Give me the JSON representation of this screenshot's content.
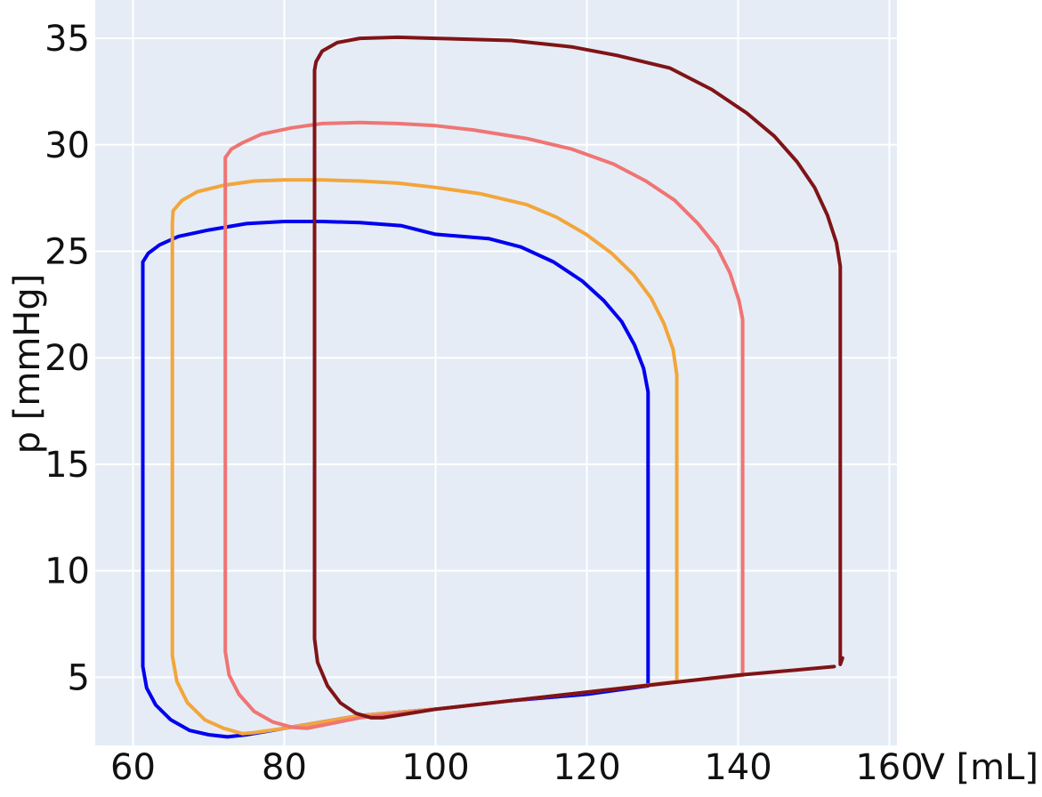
{
  "chart_data": {
    "type": "line",
    "title": "",
    "xlabel": "V [mL]",
    "ylabel": "p [mmHg]",
    "xlim": [
      55,
      161
    ],
    "ylim": [
      1.8,
      36.8
    ],
    "grid": true,
    "background_color": "#e5ecf6",
    "x_ticks": [
      60,
      80,
      100,
      120,
      140,
      160
    ],
    "y_ticks": [
      5,
      10,
      15,
      20,
      25,
      30,
      35
    ],
    "x_tick_labels": [
      "60",
      "80",
      "100",
      "120",
      "140",
      "160"
    ],
    "y_tick_labels": [
      "5",
      "10",
      "15",
      "20",
      "25",
      "30",
      "35"
    ],
    "series": [
      {
        "color": "#0000ee",
        "points": [
          [
            128.1,
            4.7
          ],
          [
            128.1,
            18.4
          ],
          [
            127.5,
            19.5
          ],
          [
            126.3,
            20.6
          ],
          [
            124.6,
            21.7
          ],
          [
            122.2,
            22.7
          ],
          [
            119.4,
            23.6
          ],
          [
            115.6,
            24.5
          ],
          [
            111.3,
            25.2
          ],
          [
            107.0,
            25.6
          ],
          [
            100.0,
            25.8
          ],
          [
            95.5,
            26.2
          ],
          [
            90.0,
            26.35
          ],
          [
            85.0,
            26.4
          ],
          [
            80.0,
            26.4
          ],
          [
            75.0,
            26.3
          ],
          [
            70.0,
            26.0
          ],
          [
            66.0,
            25.7
          ],
          [
            63.5,
            25.3
          ],
          [
            62.0,
            24.9
          ],
          [
            61.3,
            24.5
          ],
          [
            61.3,
            5.5
          ],
          [
            61.8,
            4.5
          ],
          [
            63.0,
            3.7
          ],
          [
            65.0,
            3.0
          ],
          [
            67.5,
            2.5
          ],
          [
            70.0,
            2.3
          ],
          [
            72.5,
            2.2
          ],
          [
            75.0,
            2.3
          ],
          [
            80.0,
            2.6
          ],
          [
            90.0,
            3.2
          ],
          [
            100.0,
            3.5
          ],
          [
            110.0,
            3.9
          ],
          [
            120.0,
            4.2
          ],
          [
            128.1,
            4.6
          ]
        ]
      },
      {
        "color": "#f2a63b",
        "points": [
          [
            131.9,
            4.9
          ],
          [
            131.9,
            19.2
          ],
          [
            131.4,
            20.4
          ],
          [
            130.2,
            21.6
          ],
          [
            128.5,
            22.8
          ],
          [
            126.2,
            23.9
          ],
          [
            123.3,
            24.9
          ],
          [
            119.9,
            25.8
          ],
          [
            116.0,
            26.6
          ],
          [
            112.0,
            27.2
          ],
          [
            106.0,
            27.7
          ],
          [
            100.0,
            28.0
          ],
          [
            95.0,
            28.2
          ],
          [
            90.0,
            28.3
          ],
          [
            85.0,
            28.35
          ],
          [
            80.0,
            28.35
          ],
          [
            76.0,
            28.3
          ],
          [
            72.0,
            28.1
          ],
          [
            68.5,
            27.8
          ],
          [
            66.5,
            27.4
          ],
          [
            65.3,
            26.9
          ],
          [
            65.2,
            26.3
          ],
          [
            65.2,
            6.0
          ],
          [
            65.8,
            4.8
          ],
          [
            67.2,
            3.8
          ],
          [
            69.5,
            3.0
          ],
          [
            72.0,
            2.6
          ],
          [
            74.5,
            2.35
          ],
          [
            76.0,
            2.4
          ],
          [
            80.0,
            2.6
          ],
          [
            90.0,
            3.2
          ],
          [
            100.0,
            3.5
          ],
          [
            110.0,
            3.9
          ],
          [
            120.0,
            4.3
          ],
          [
            131.9,
            4.8
          ]
        ]
      },
      {
        "color": "#ef7573",
        "points": [
          [
            140.6,
            5.2
          ],
          [
            140.6,
            21.8
          ],
          [
            140.1,
            22.7
          ],
          [
            138.9,
            24.0
          ],
          [
            137.2,
            25.2
          ],
          [
            134.7,
            26.3
          ],
          [
            131.6,
            27.4
          ],
          [
            127.8,
            28.3
          ],
          [
            123.5,
            29.1
          ],
          [
            118.0,
            29.8
          ],
          [
            112.0,
            30.3
          ],
          [
            105.0,
            30.7
          ],
          [
            100.0,
            30.9
          ],
          [
            95.0,
            31.0
          ],
          [
            90.0,
            31.05
          ],
          [
            85.0,
            31.0
          ],
          [
            81.0,
            30.8
          ],
          [
            77.0,
            30.5
          ],
          [
            74.5,
            30.1
          ],
          [
            73.0,
            29.8
          ],
          [
            72.2,
            29.4
          ],
          [
            72.2,
            6.2
          ],
          [
            72.7,
            5.1
          ],
          [
            74.0,
            4.2
          ],
          [
            76.0,
            3.4
          ],
          [
            78.5,
            2.9
          ],
          [
            81.0,
            2.65
          ],
          [
            83.0,
            2.6
          ],
          [
            90.0,
            3.1
          ],
          [
            100.0,
            3.5
          ],
          [
            110.0,
            3.9
          ],
          [
            120.0,
            4.3
          ],
          [
            130.0,
            4.7
          ],
          [
            140.6,
            5.1
          ]
        ]
      },
      {
        "color": "#7f1416",
        "points": [
          [
            153.8,
            5.9
          ],
          [
            153.5,
            5.6
          ],
          [
            153.5,
            24.3
          ],
          [
            153.0,
            25.4
          ],
          [
            151.8,
            26.7
          ],
          [
            150.1,
            28.0
          ],
          [
            147.8,
            29.2
          ],
          [
            144.8,
            30.4
          ],
          [
            141.1,
            31.5
          ],
          [
            136.5,
            32.6
          ],
          [
            131.0,
            33.6
          ],
          [
            124.0,
            34.2
          ],
          [
            118.0,
            34.6
          ],
          [
            110.0,
            34.9
          ],
          [
            100.0,
            35.0
          ],
          [
            95.0,
            35.05
          ],
          [
            90.0,
            35.0
          ],
          [
            87.0,
            34.8
          ],
          [
            85.0,
            34.4
          ],
          [
            84.2,
            33.9
          ],
          [
            84.0,
            33.5
          ],
          [
            84.0,
            6.8
          ],
          [
            84.4,
            5.7
          ],
          [
            85.7,
            4.6
          ],
          [
            87.4,
            3.8
          ],
          [
            89.5,
            3.3
          ],
          [
            91.5,
            3.1
          ],
          [
            93.0,
            3.1
          ],
          [
            100.0,
            3.5
          ],
          [
            110.0,
            3.9
          ],
          [
            120.0,
            4.3
          ],
          [
            130.0,
            4.7
          ],
          [
            140.0,
            5.1
          ],
          [
            152.7,
            5.5
          ]
        ]
      }
    ]
  }
}
